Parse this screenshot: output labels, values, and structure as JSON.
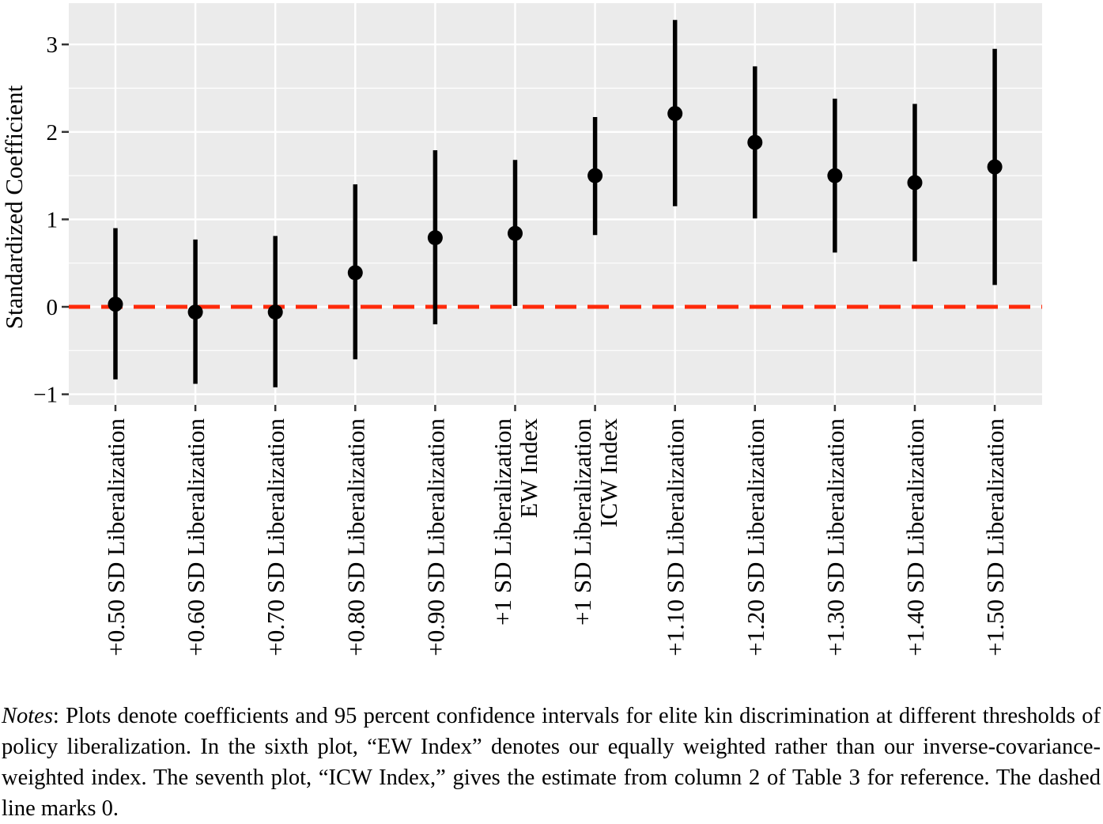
{
  "chart_data": {
    "type": "scatter",
    "subtype": "point-with-error-bars",
    "ylabel": "Standardized Coefficient",
    "xlabel": "",
    "ylim": [
      -1.1,
      3.45
    ],
    "yticks": [
      -1,
      0,
      1,
      2,
      3
    ],
    "ytick_labels": [
      "−1",
      "0",
      "1",
      "2",
      "3"
    ],
    "grid": true,
    "reference_line": {
      "y": 0,
      "style": "dashed",
      "color": "#ff2a0a"
    },
    "categories": [
      [
        "+0.50 SD Liberalization"
      ],
      [
        "+0.60 SD Liberalization"
      ],
      [
        "+0.70 SD Liberalization"
      ],
      [
        "+0.80 SD Liberalization"
      ],
      [
        "+0.90 SD Liberalization"
      ],
      [
        "+1 SD Liberalization",
        "EW Index"
      ],
      [
        "+1 SD Liberalization",
        "ICW Index"
      ],
      [
        "+1.10 SD Liberalization"
      ],
      [
        "+1.20 SD Liberalization"
      ],
      [
        "+1.30 SD Liberalization"
      ],
      [
        "+1.40 SD Liberalization"
      ],
      [
        "+1.50 SD Liberalization"
      ]
    ],
    "values": [
      0.03,
      -0.06,
      -0.06,
      0.39,
      0.79,
      0.84,
      1.5,
      2.21,
      1.88,
      1.5,
      1.42,
      1.6
    ],
    "lower": [
      -0.83,
      -0.88,
      -0.92,
      -0.6,
      -0.2,
      0.01,
      0.82,
      1.15,
      1.01,
      0.62,
      0.52,
      0.25
    ],
    "upper": [
      0.9,
      0.77,
      0.81,
      1.4,
      1.79,
      1.68,
      2.17,
      3.28,
      2.75,
      2.38,
      2.32,
      2.95
    ],
    "colors": {
      "panel": "#ebebeb",
      "grid": "#ffffff",
      "point": "#000000"
    }
  },
  "notes": {
    "label": "Notes",
    "text": ": Plots denote coefficients and 95 percent confidence intervals for elite kin discrimination at different thresholds of policy liberalization. In the sixth plot, “EW Index” denotes our equally weighted rather than our inverse-covariance-weighted index. The seventh plot, “ICW Index,” gives the estimate from column 2 of Table 3 for reference. The dashed line marks 0."
  }
}
